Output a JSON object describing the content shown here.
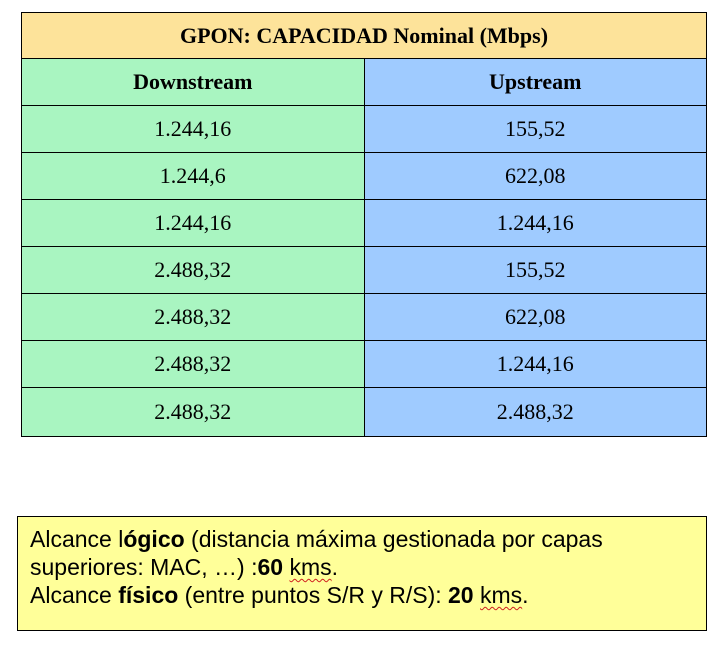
{
  "table": {
    "title": "GPON: CAPACIDAD Nominal (Mbps)",
    "headers": [
      "Downstream",
      "Upstream"
    ],
    "rows": [
      [
        "1.244,16",
        "155,52"
      ],
      [
        "1.244,6",
        "622,08"
      ],
      [
        "1.244,16",
        "1.244,16"
      ],
      [
        "2.488,32",
        "155,52"
      ],
      [
        "2.488,32",
        "622,08"
      ],
      [
        "2.488,32",
        "1.244,16"
      ],
      [
        "2.488,32",
        "2.488,32"
      ]
    ]
  },
  "note": {
    "line1": {
      "a": "Alcance l",
      "b": "ógico",
      "c": " (distancia máxima gestionada por capas superiores: MAC, …) :",
      "d": "60",
      "e": " ",
      "f": "kms",
      "g": "."
    },
    "line2": {
      "a": "Alcance ",
      "b": "físico",
      "c": " (entre puntos S/R y R/S): ",
      "d": "20",
      "e": " ",
      "f": "kms",
      "g": "."
    }
  },
  "colors": {
    "title_bg": "#fde39a",
    "downstream_bg": "#a9f5c1",
    "upstream_bg": "#9fcbff",
    "note_bg": "#ffff99",
    "spellcheck_underline": "#d02020"
  }
}
